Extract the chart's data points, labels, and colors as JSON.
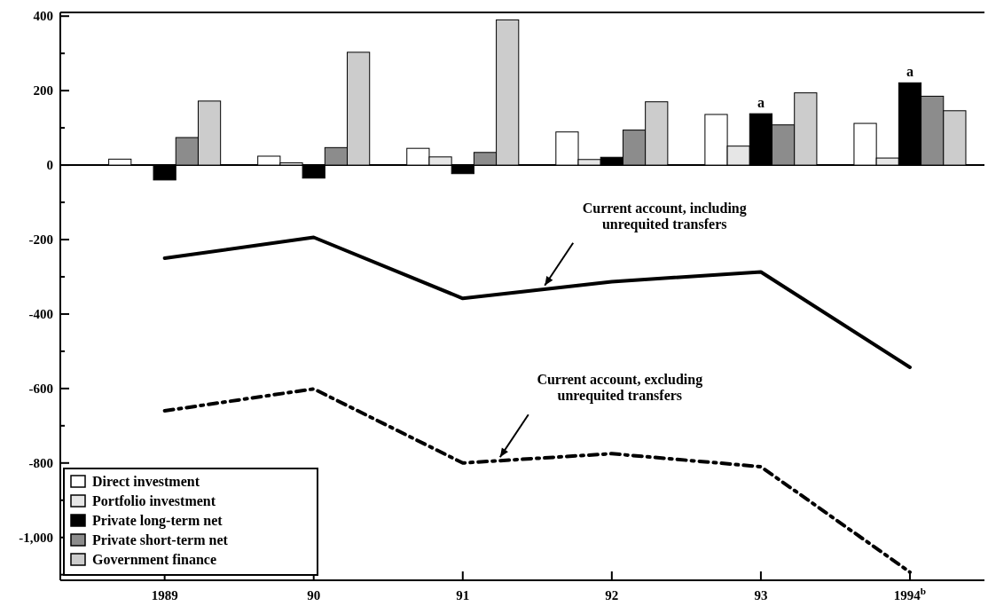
{
  "chart_data": {
    "type": "bar",
    "x": [
      1989,
      1990,
      1991,
      1992,
      1993,
      1994
    ],
    "xlim": [
      1988.3,
      1994.5
    ],
    "xticks": [
      1989,
      {
        "value": 1990,
        "label": "90"
      },
      {
        "value": 1991,
        "label": "91"
      },
      {
        "value": 1992,
        "label": "92"
      },
      {
        "value": 1993,
        "label": "93"
      },
      {
        "value": 1994,
        "label": "1994$^{b}$"
      }
    ],
    "ylim": [
      -1115,
      410
    ],
    "yticks": [
      {
        "value": -1100,
        "label": null
      },
      {
        "value": -1000,
        "label": "-1,000"
      },
      {
        "value": -900,
        "label": null
      },
      -800,
      {
        "value": -700,
        "label": null
      },
      -600,
      {
        "value": -500,
        "label": null
      },
      -400,
      {
        "value": -300,
        "label": null
      },
      -200,
      {
        "value": -100,
        "label": null
      },
      0,
      {
        "value": 100,
        "label": null
      },
      200,
      {
        "value": 300,
        "label": null
      },
      400
    ],
    "series": [
      {
        "name": "Direct investment",
        "color": "#ffffff",
        "values": [
          16,
          24,
          45,
          89,
          136,
          112
        ]
      },
      {
        "name": "Portfolio investment",
        "color": "#e6e6e6",
        "values": [
          0,
          6,
          22,
          15,
          51,
          19
        ]
      },
      {
        "name": "Private long-term net",
        "color": "#000000",
        "values": [
          -40,
          -35,
          -23,
          21,
          138,
          221
        ]
      },
      {
        "name": "Private short-term net",
        "color": "#8c8c8c",
        "values": [
          74,
          47,
          34,
          94,
          108,
          185
        ]
      },
      {
        "name": "Government finance",
        "color": "#cccccc",
        "values": [
          172,
          303,
          390,
          170,
          194,
          146
        ]
      },
      {
        "type": "line",
        "color": "#000000",
        "line_style": "solid",
        "values": [
          -250,
          -194,
          -358,
          -313,
          -287,
          -543
        ]
      },
      {
        "type": "line",
        "color": "#000000",
        "line_style": "dashed",
        "values": [
          -660,
          -601,
          -800,
          -775,
          -810,
          -1093
        ]
      }
    ],
    "annotations": [
      {
        "text": "Current account, including\nunrequited transfers",
        "x": 1991.55,
        "y": -333
      },
      {
        "text": "Current account, excluding\nunrequited transfers",
        "x": 1991.25,
        "y": -794
      },
      {
        "text": "a",
        "x": 1993,
        "y": 138
      },
      {
        "text": "a",
        "x": 1994,
        "y": 221
      }
    ],
    "legend": "bottom left"
  }
}
